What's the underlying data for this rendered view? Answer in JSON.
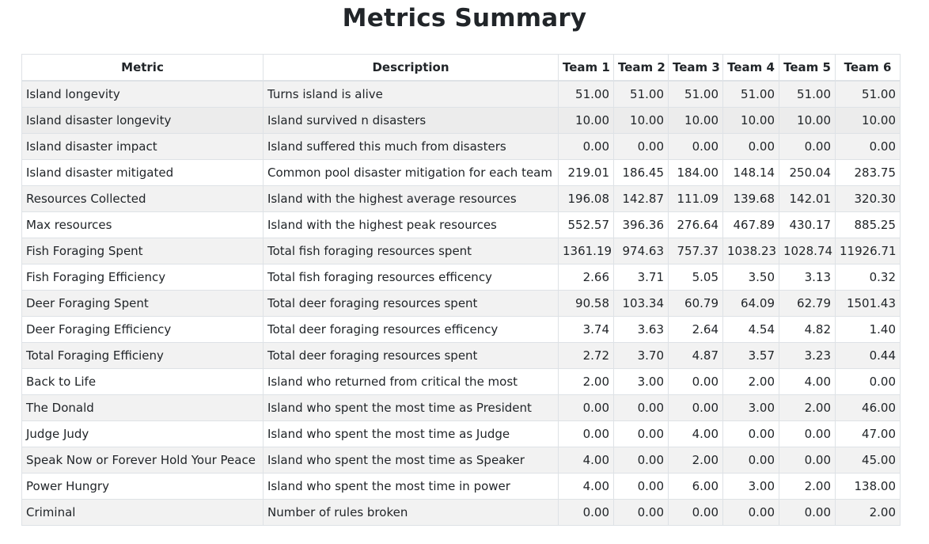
{
  "title": "Metrics Summary",
  "table": {
    "headers": [
      "Metric",
      "Description",
      "Team 1",
      "Team 2",
      "Team 3",
      "Team 4",
      "Team 5",
      "Team 6"
    ],
    "rows": [
      {
        "metric": "Island longevity",
        "description": "Turns island is alive",
        "values": [
          "51.00",
          "51.00",
          "51.00",
          "51.00",
          "51.00",
          "51.00"
        ]
      },
      {
        "metric": "Island disaster longevity",
        "description": "Island survived n disasters",
        "values": [
          "10.00",
          "10.00",
          "10.00",
          "10.00",
          "10.00",
          "10.00"
        ]
      },
      {
        "metric": "Island disaster impact",
        "description": "Island suffered this much from disasters",
        "values": [
          "0.00",
          "0.00",
          "0.00",
          "0.00",
          "0.00",
          "0.00"
        ]
      },
      {
        "metric": "Island disaster mitigated",
        "description": "Common pool disaster mitigation for each team",
        "values": [
          "219.01",
          "186.45",
          "184.00",
          "148.14",
          "250.04",
          "283.75"
        ]
      },
      {
        "metric": "Resources Collected",
        "description": "Island with the highest average resources",
        "values": [
          "196.08",
          "142.87",
          "111.09",
          "139.68",
          "142.01",
          "320.30"
        ]
      },
      {
        "metric": "Max resources",
        "description": "Island with the highest peak resources",
        "values": [
          "552.57",
          "396.36",
          "276.64",
          "467.89",
          "430.17",
          "885.25"
        ]
      },
      {
        "metric": "Fish Foraging Spent",
        "description": "Total fish foraging resources spent",
        "values": [
          "1361.19",
          "974.63",
          "757.37",
          "1038.23",
          "1028.74",
          "11926.71"
        ]
      },
      {
        "metric": "Fish Foraging Efficiency",
        "description": "Total fish foraging resources efficency",
        "values": [
          "2.66",
          "3.71",
          "5.05",
          "3.50",
          "3.13",
          "0.32"
        ]
      },
      {
        "metric": "Deer Foraging Spent",
        "description": "Total deer foraging resources spent",
        "values": [
          "90.58",
          "103.34",
          "60.79",
          "64.09",
          "62.79",
          "1501.43"
        ]
      },
      {
        "metric": "Deer Foraging Efficiency",
        "description": "Total deer foraging resources efficency",
        "values": [
          "3.74",
          "3.63",
          "2.64",
          "4.54",
          "4.82",
          "1.40"
        ]
      },
      {
        "metric": "Total Foraging Efficieny",
        "description": "Total deer foraging resources spent",
        "values": [
          "2.72",
          "3.70",
          "4.87",
          "3.57",
          "3.23",
          "0.44"
        ]
      },
      {
        "metric": "Back to Life",
        "description": "Island who returned from critical the most",
        "values": [
          "2.00",
          "3.00",
          "0.00",
          "2.00",
          "4.00",
          "0.00"
        ]
      },
      {
        "metric": "The Donald",
        "description": "Island who spent the most time as President",
        "values": [
          "0.00",
          "0.00",
          "0.00",
          "3.00",
          "2.00",
          "46.00"
        ]
      },
      {
        "metric": "Judge Judy",
        "description": "Island who spent the most time as Judge",
        "values": [
          "0.00",
          "0.00",
          "4.00",
          "0.00",
          "0.00",
          "47.00"
        ]
      },
      {
        "metric": "Speak Now or Forever Hold Your Peace",
        "description": "Island who spent the most time as Speaker",
        "values": [
          "4.00",
          "0.00",
          "2.00",
          "0.00",
          "0.00",
          "45.00"
        ]
      },
      {
        "metric": "Power Hungry",
        "description": "Island who spent the most time in power",
        "values": [
          "4.00",
          "0.00",
          "6.00",
          "3.00",
          "2.00",
          "138.00"
        ]
      },
      {
        "metric": "Criminal",
        "description": "Number of rules broken",
        "values": [
          "0.00",
          "0.00",
          "0.00",
          "0.00",
          "0.00",
          "2.00"
        ]
      }
    ]
  }
}
